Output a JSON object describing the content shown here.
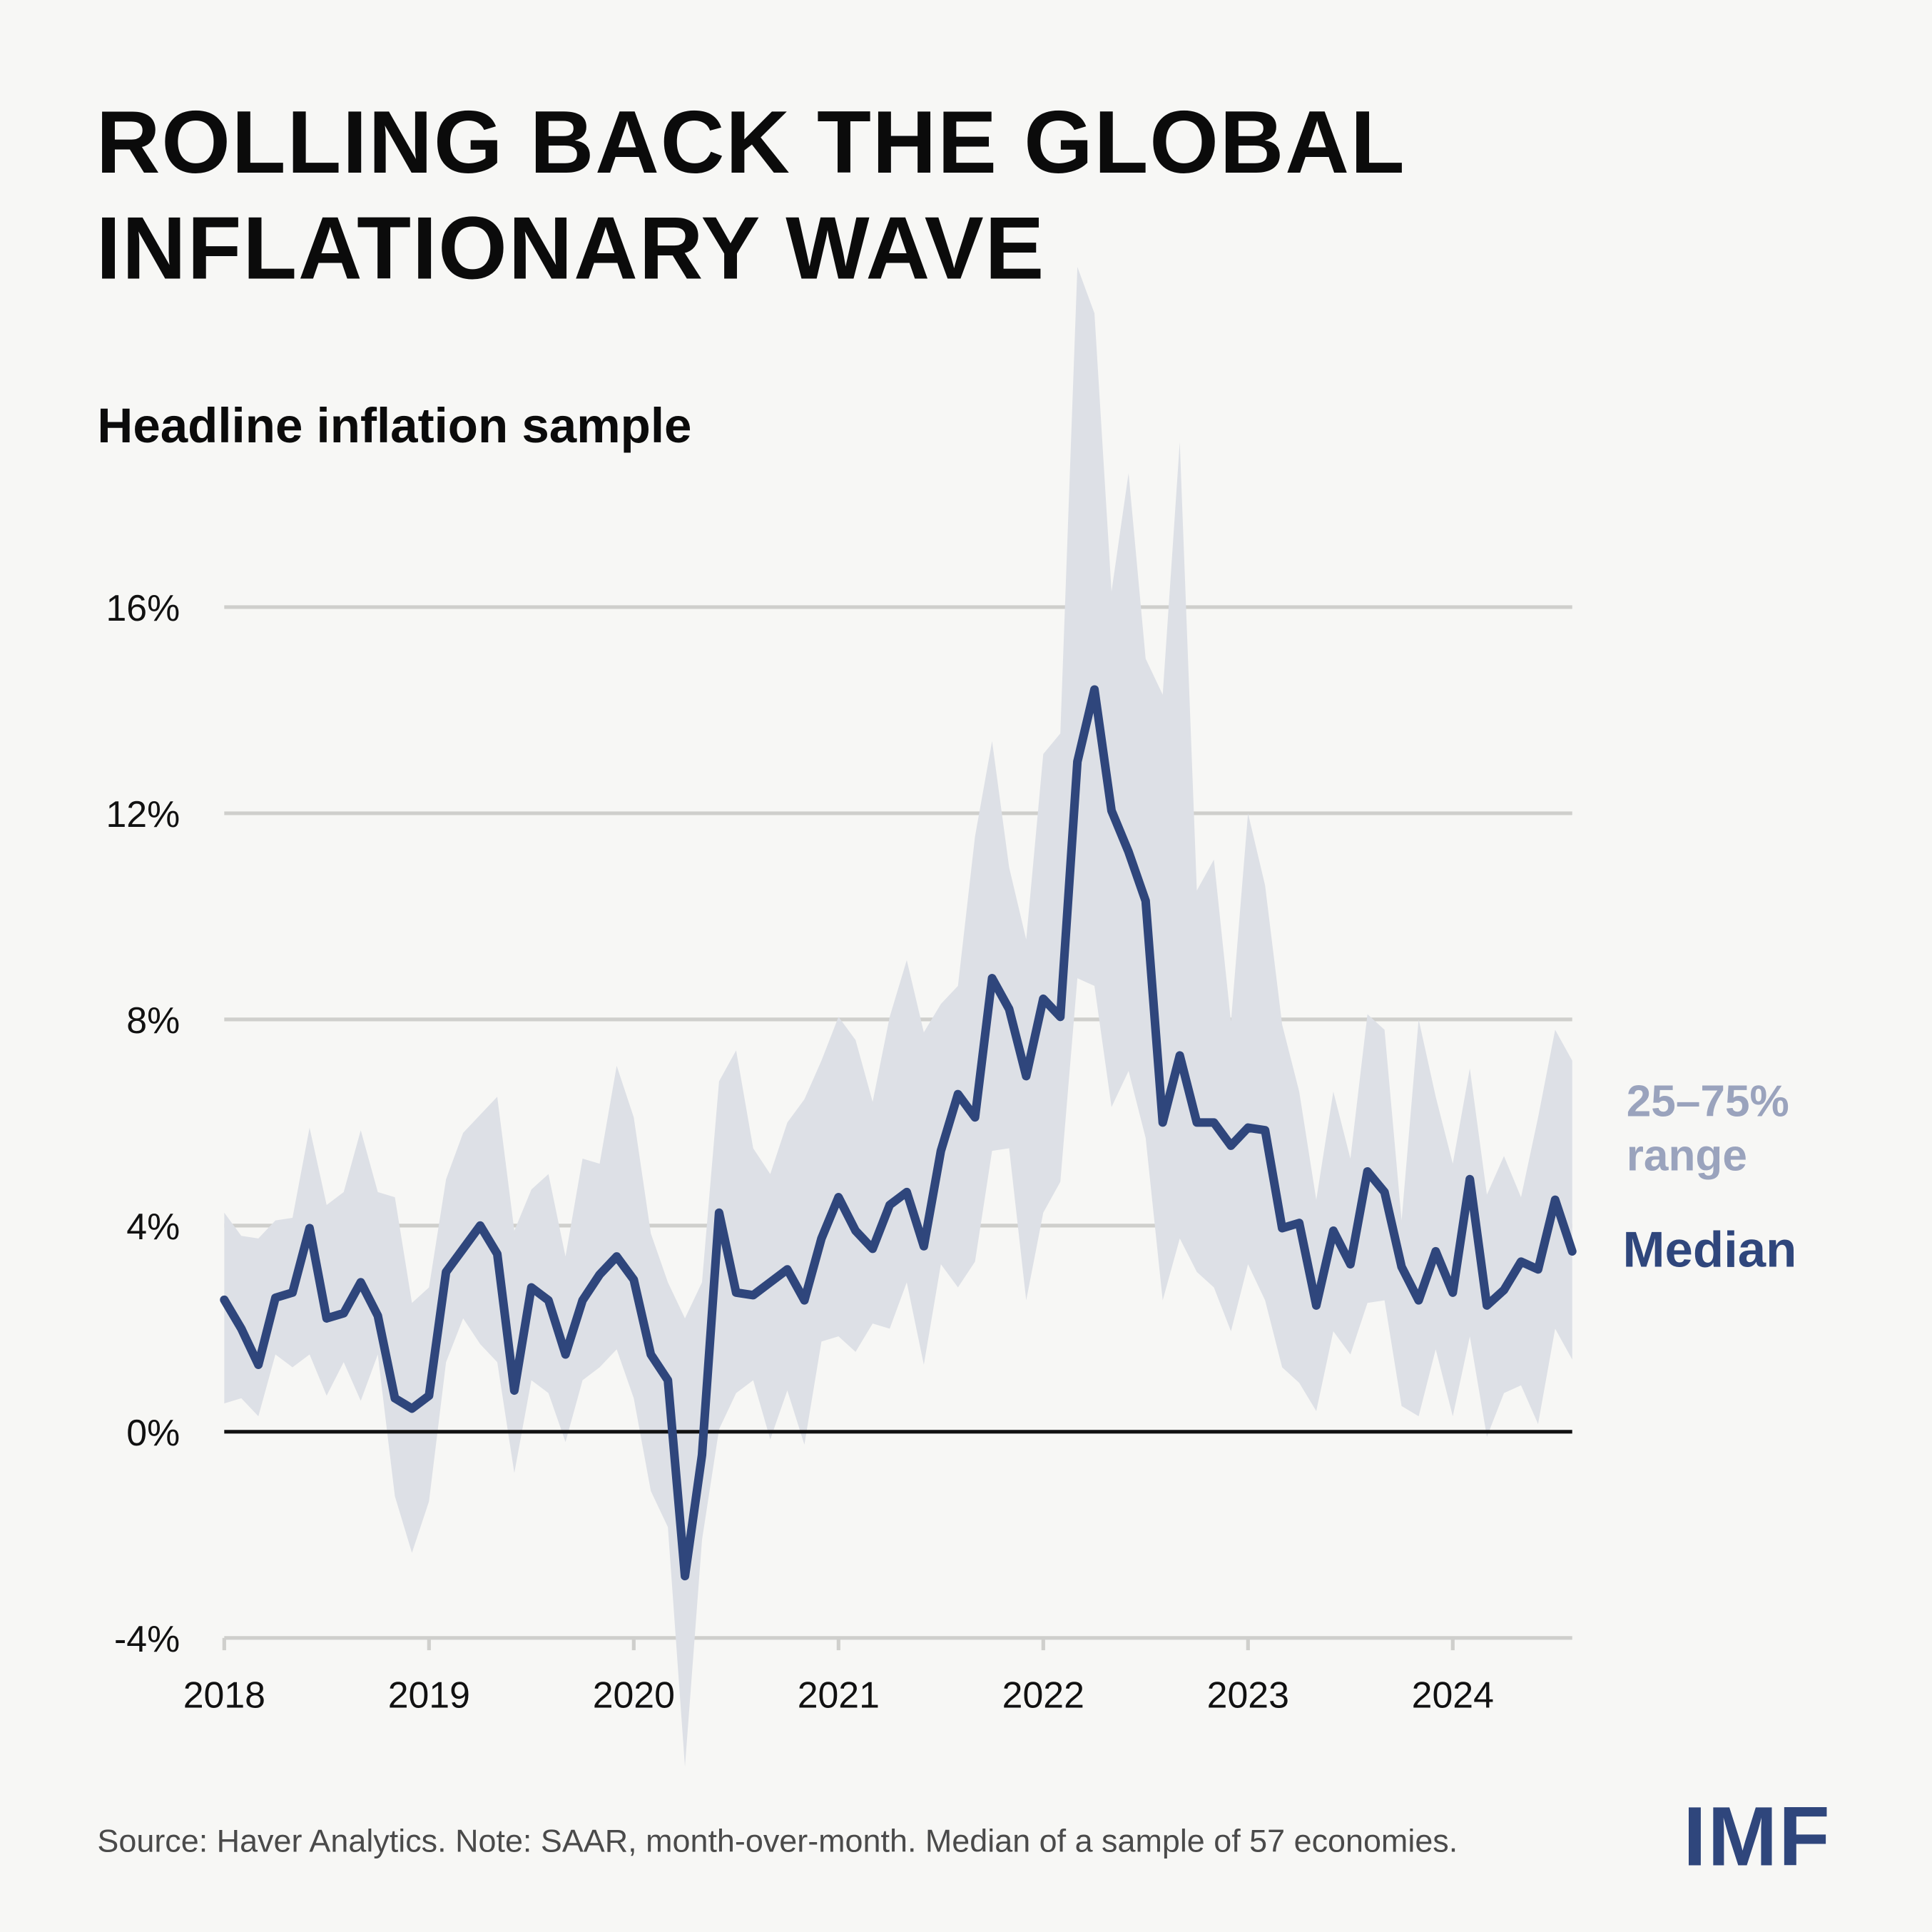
{
  "title_lines": [
    "ROLLING BACK THE GLOBAL",
    "INFLATIONARY WAVE"
  ],
  "subtitle": "Headline inflation sample",
  "footer": "Source: Haver Analytics. Note: SAAR, month-over-month.  Median of a sample of 57 economies.",
  "logo": "IMF",
  "colors": {
    "median": "#2f467c",
    "band": "#dde0e6",
    "band_label": "#9aa3bd",
    "grid": "#cfcfcc",
    "zero_line": "#111111"
  },
  "chart_data": {
    "type": "line",
    "x_start": "2018-01",
    "x_end": "2024-08",
    "frequency": "monthly",
    "x_tick_labels": [
      "2018",
      "2019",
      "2020",
      "2021",
      "2022",
      "2023",
      "2024"
    ],
    "y_tick_values": [
      -4,
      0,
      4,
      8,
      12,
      16
    ],
    "y_tick_labels": [
      "-4%",
      "0%",
      "4%",
      "8%",
      "12%",
      "16%"
    ],
    "ylim": [
      -4,
      16
    ],
    "grid": true,
    "band_label": [
      "25–75%",
      "range"
    ],
    "series": [
      {
        "name": "Median",
        "values": [
          2.56,
          2.0,
          1.3,
          2.6,
          2.7,
          3.95,
          2.2,
          2.3,
          2.9,
          2.25,
          0.65,
          0.45,
          0.7,
          3.1,
          3.55,
          4.0,
          3.45,
          0.8,
          2.8,
          2.55,
          1.5,
          2.55,
          3.05,
          3.4,
          2.95,
          1.5,
          1.0,
          -2.8,
          -0.45,
          4.25,
          2.7,
          2.65,
          2.9,
          3.15,
          2.55,
          3.75,
          4.55,
          3.9,
          3.55,
          4.4,
          4.65,
          3.6,
          5.45,
          6.55,
          6.1,
          8.8,
          8.2,
          6.9,
          8.4,
          8.05,
          13.0,
          14.4,
          12.05,
          11.25,
          10.3,
          6.0,
          7.3,
          6.0,
          6.0,
          5.55,
          5.9,
          5.85,
          3.95,
          4.05,
          2.45,
          3.9,
          3.25,
          5.05,
          4.65,
          3.2,
          2.55,
          3.5,
          2.7,
          4.9,
          2.45,
          2.75,
          3.3,
          3.15,
          4.5,
          3.5
        ]
      }
    ],
    "band": {
      "upper": [
        4.25,
        3.8,
        3.75,
        4.1,
        4.15,
        5.9,
        4.4,
        4.65,
        5.85,
        4.65,
        4.55,
        2.5,
        2.8,
        4.9,
        5.8,
        6.15,
        6.5,
        3.9,
        4.7,
        5.0,
        3.4,
        5.3,
        5.2,
        7.1,
        6.1,
        3.85,
        2.9,
        2.2,
        2.9,
        6.8,
        7.4,
        5.5,
        5.0,
        6.0,
        6.45,
        7.2,
        8.05,
        7.6,
        6.4,
        8.05,
        9.15,
        7.75,
        8.3,
        8.65,
        11.55,
        13.4,
        10.95,
        9.55,
        13.15,
        13.55,
        22.6,
        21.7,
        16.3,
        18.6,
        15.0,
        14.3,
        19.2,
        10.5,
        11.1,
        7.95,
        12.0,
        10.6,
        7.9,
        6.6,
        4.5,
        6.6,
        5.3,
        8.1,
        7.8,
        4.1,
        8.0,
        6.5,
        5.2,
        7.05,
        4.6,
        5.35,
        4.55,
        6.1,
        7.8,
        7.2
      ],
      "lower": [
        0.55,
        0.65,
        0.3,
        1.5,
        1.25,
        1.5,
        0.7,
        1.35,
        0.6,
        1.5,
        -1.25,
        -2.35,
        -1.35,
        1.35,
        2.2,
        1.7,
        1.35,
        -0.8,
        1.0,
        0.75,
        -0.2,
        1.0,
        1.25,
        1.6,
        0.65,
        -1.15,
        -1.85,
        -6.5,
        -2.1,
        0.05,
        0.75,
        1.0,
        -0.15,
        0.8,
        -0.25,
        1.75,
        1.85,
        1.55,
        2.1,
        2.0,
        2.9,
        1.3,
        3.25,
        2.8,
        3.3,
        5.45,
        5.5,
        2.55,
        4.25,
        4.85,
        8.8,
        8.65,
        6.3,
        7.0,
        5.7,
        2.55,
        3.75,
        3.1,
        2.8,
        1.95,
        3.25,
        2.55,
        1.25,
        0.95,
        0.4,
        1.95,
        1.5,
        2.5,
        2.55,
        0.5,
        0.3,
        1.6,
        0.3,
        1.85,
        -0.1,
        0.75,
        0.9,
        0.15,
        2.0,
        1.4
      ]
    }
  }
}
